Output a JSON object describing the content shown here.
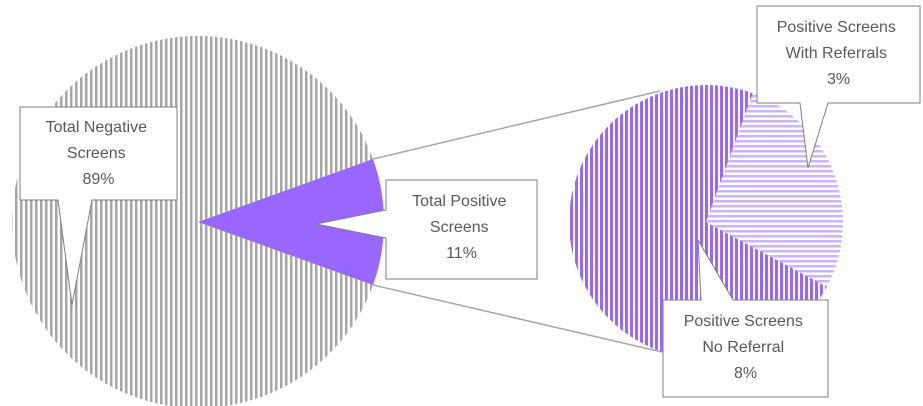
{
  "chart_data": {
    "type": "pie",
    "title": "",
    "main_pie": {
      "slices": [
        {
          "name": "Total Negative Screens",
          "label_lines": [
            "Total Negative",
            "Screens"
          ],
          "value": 89,
          "display": "89%"
        },
        {
          "name": "Total Positive Screens",
          "label_lines": [
            "Total Positive",
            "Screens"
          ],
          "value": 11,
          "display": "11%"
        }
      ]
    },
    "sub_pie": {
      "breakdown_of": "Total Positive Screens",
      "slices": [
        {
          "name": "Positive Screens With Referrals",
          "label_lines": [
            "Positive Screens",
            "With Referrals"
          ],
          "value": 3,
          "display": "3%"
        },
        {
          "name": "Positive Screens No Referral",
          "label_lines": [
            "Positive Screens",
            "No Referral"
          ],
          "value": 8,
          "display": "8%"
        }
      ]
    },
    "colors": {
      "negative_stripe": "#a6a6a6",
      "positive_fill": "#9966ff",
      "referral_stripe": "#cdb3ff",
      "connector": "#a6a6a6",
      "callout_border": "#7f7f7f",
      "callout_text": "#595959"
    }
  }
}
